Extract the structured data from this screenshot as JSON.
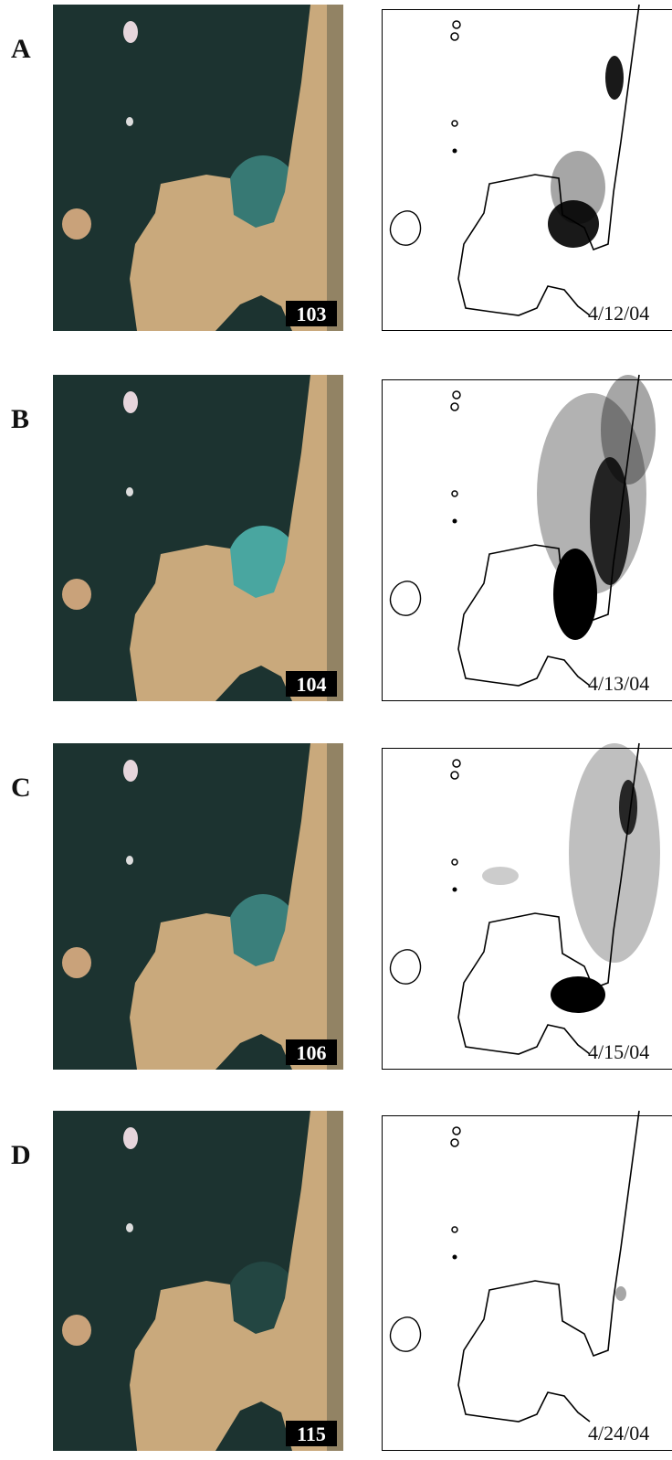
{
  "panels": [
    {
      "label": "A",
      "day": "103",
      "date": "4/12/04"
    },
    {
      "label": "B",
      "day": "104",
      "date": "4/13/04"
    },
    {
      "label": "C",
      "day": "106",
      "date": "4/15/04"
    },
    {
      "label": "D",
      "day": "115",
      "date": "4/24/04"
    }
  ]
}
